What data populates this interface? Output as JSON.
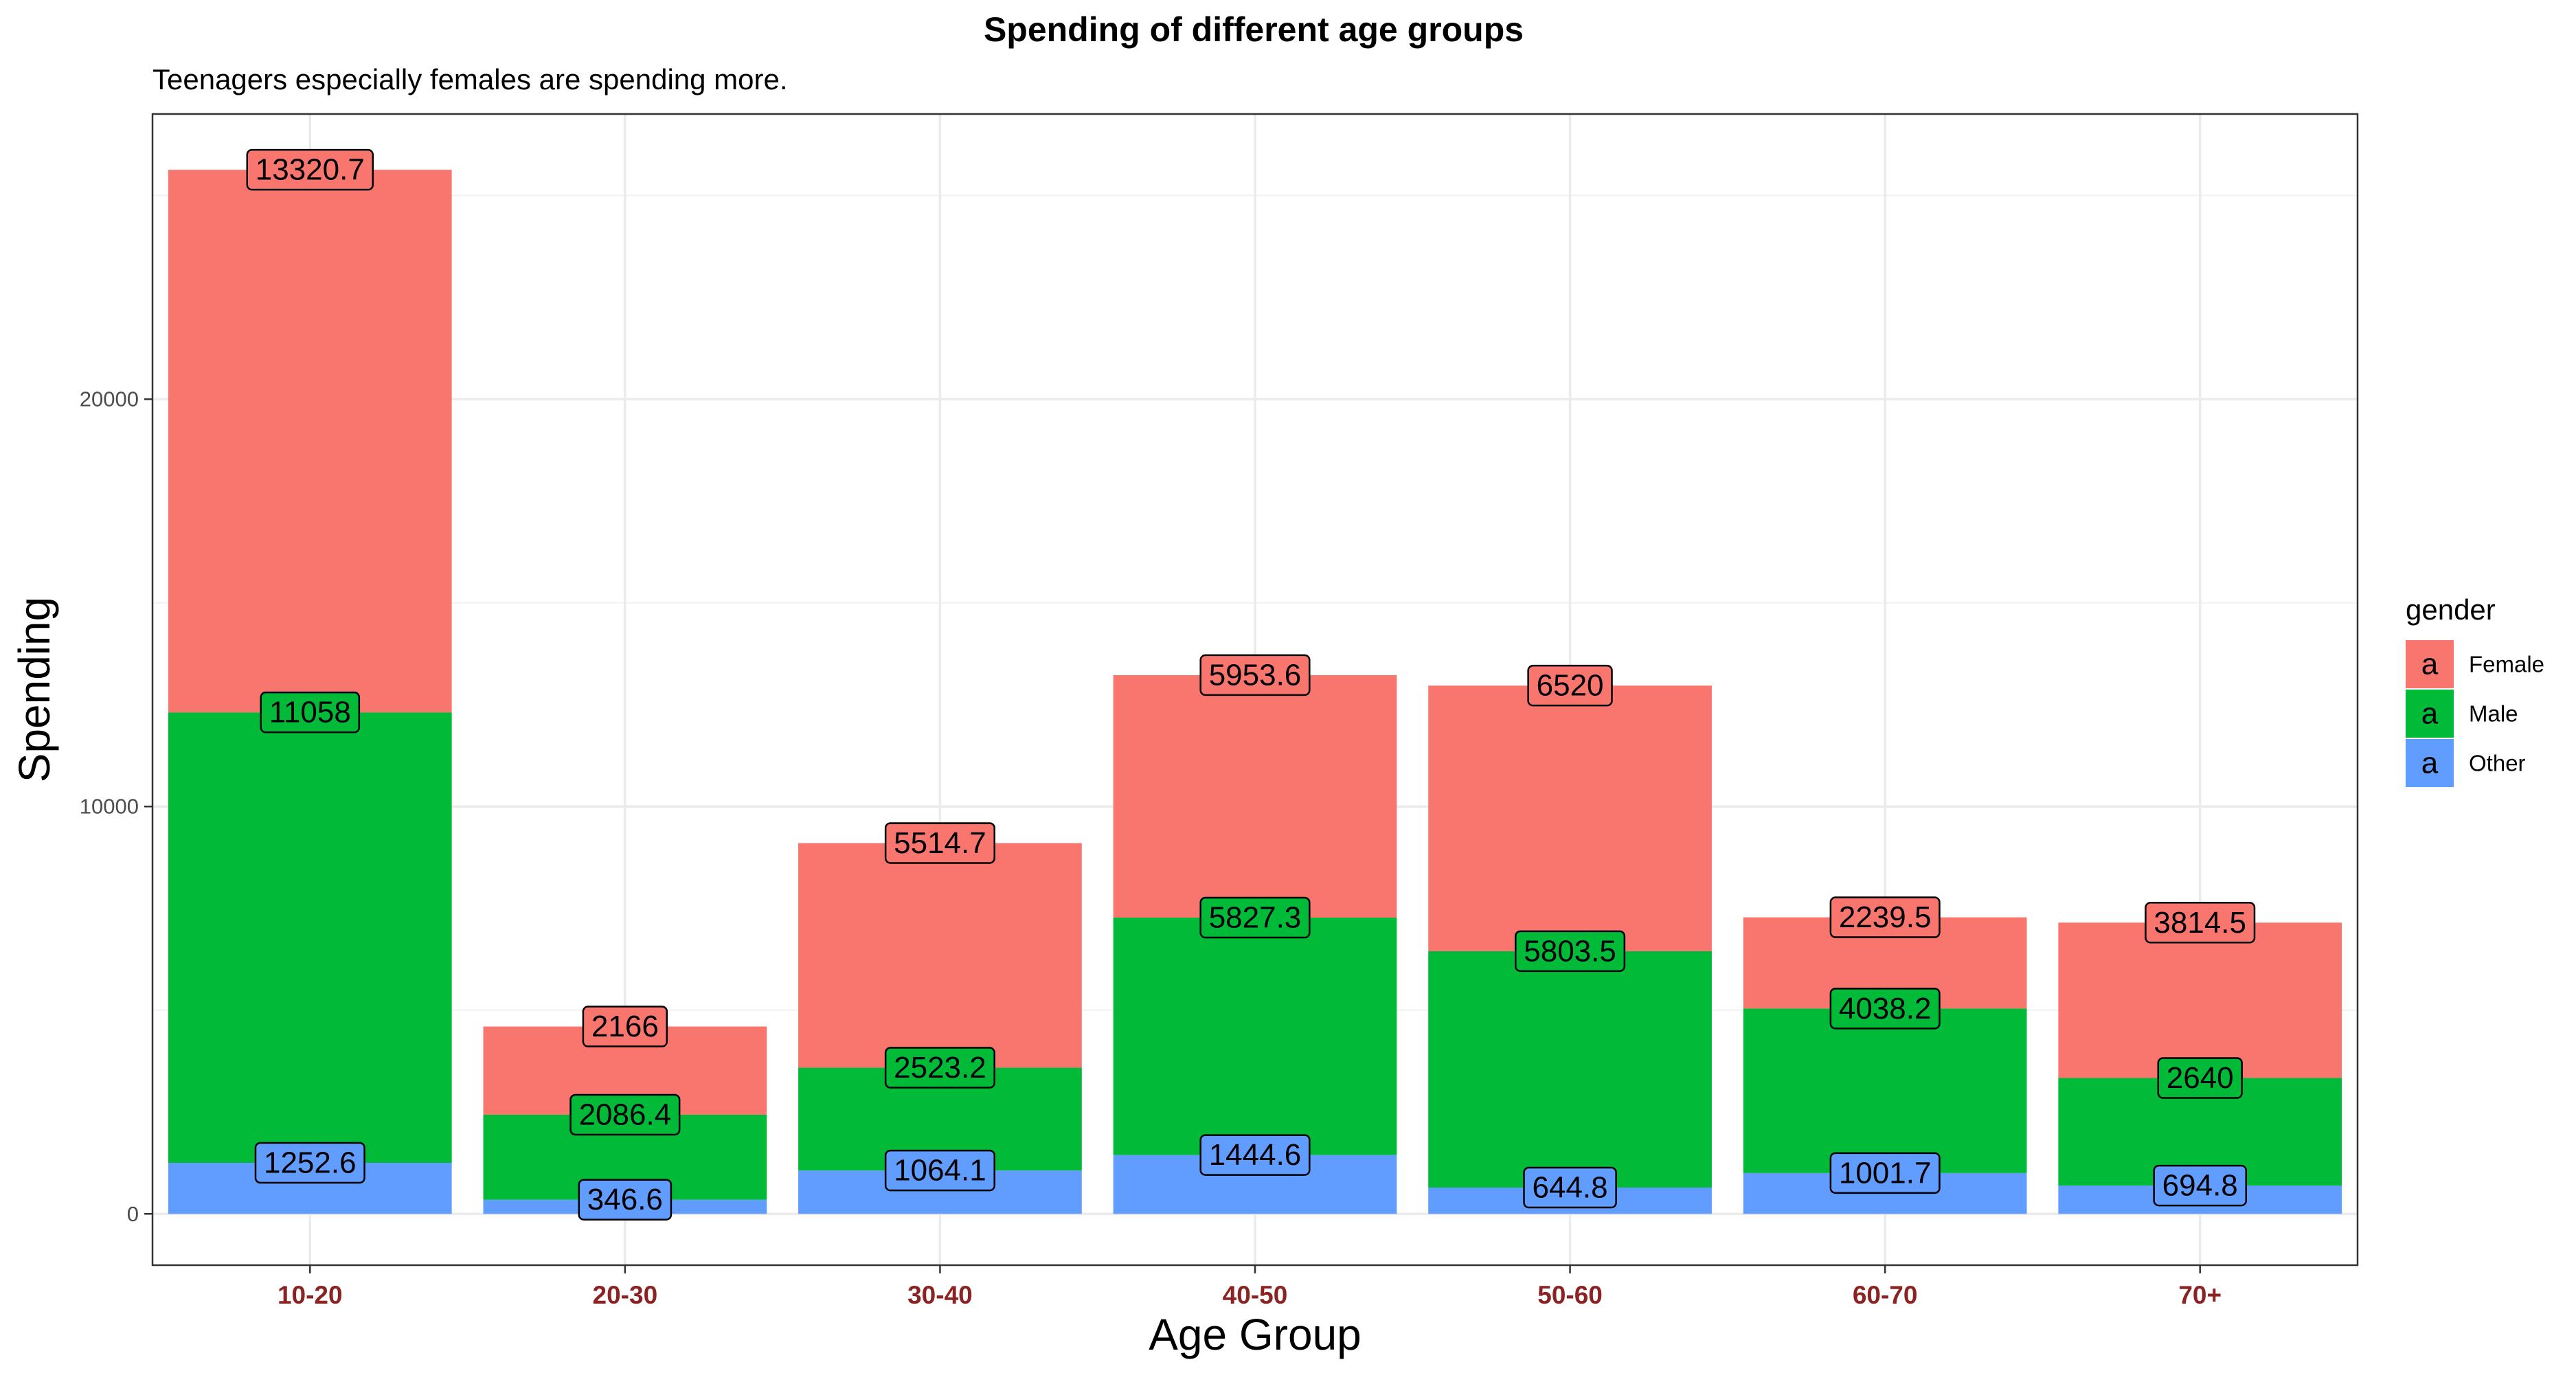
{
  "chart_data": {
    "type": "bar",
    "stacked": true,
    "title": "Spending of different age groups",
    "subtitle": "Teenagers especially females are spending more.",
    "xlabel": "Age Group",
    "ylabel": "Spending",
    "categories": [
      "10-20",
      "20-30",
      "30-40",
      "40-50",
      "50-60",
      "60-70",
      "70+"
    ],
    "series": [
      {
        "name": "Other",
        "color": "#619CFF",
        "values": [
          1252.6,
          346.6,
          1064.1,
          1444.6,
          644.8,
          1001.7,
          694.8
        ]
      },
      {
        "name": "Male",
        "color": "#00BA38",
        "values": [
          11058,
          2086.4,
          2523.2,
          5827.3,
          5803.5,
          4038.2,
          2640
        ]
      },
      {
        "name": "Female",
        "color": "#F8766D",
        "values": [
          13320.7,
          2166,
          5514.7,
          5953.6,
          6520,
          2239.5,
          3814.5
        ]
      }
    ],
    "yticks": [
      0,
      10000,
      20000
    ],
    "ylim": [
      -1260,
      27000
    ],
    "grid": true,
    "legend": {
      "title": "gender",
      "position": "right",
      "key_glyph": "a",
      "entries": [
        "Female",
        "Male",
        "Other"
      ]
    }
  }
}
